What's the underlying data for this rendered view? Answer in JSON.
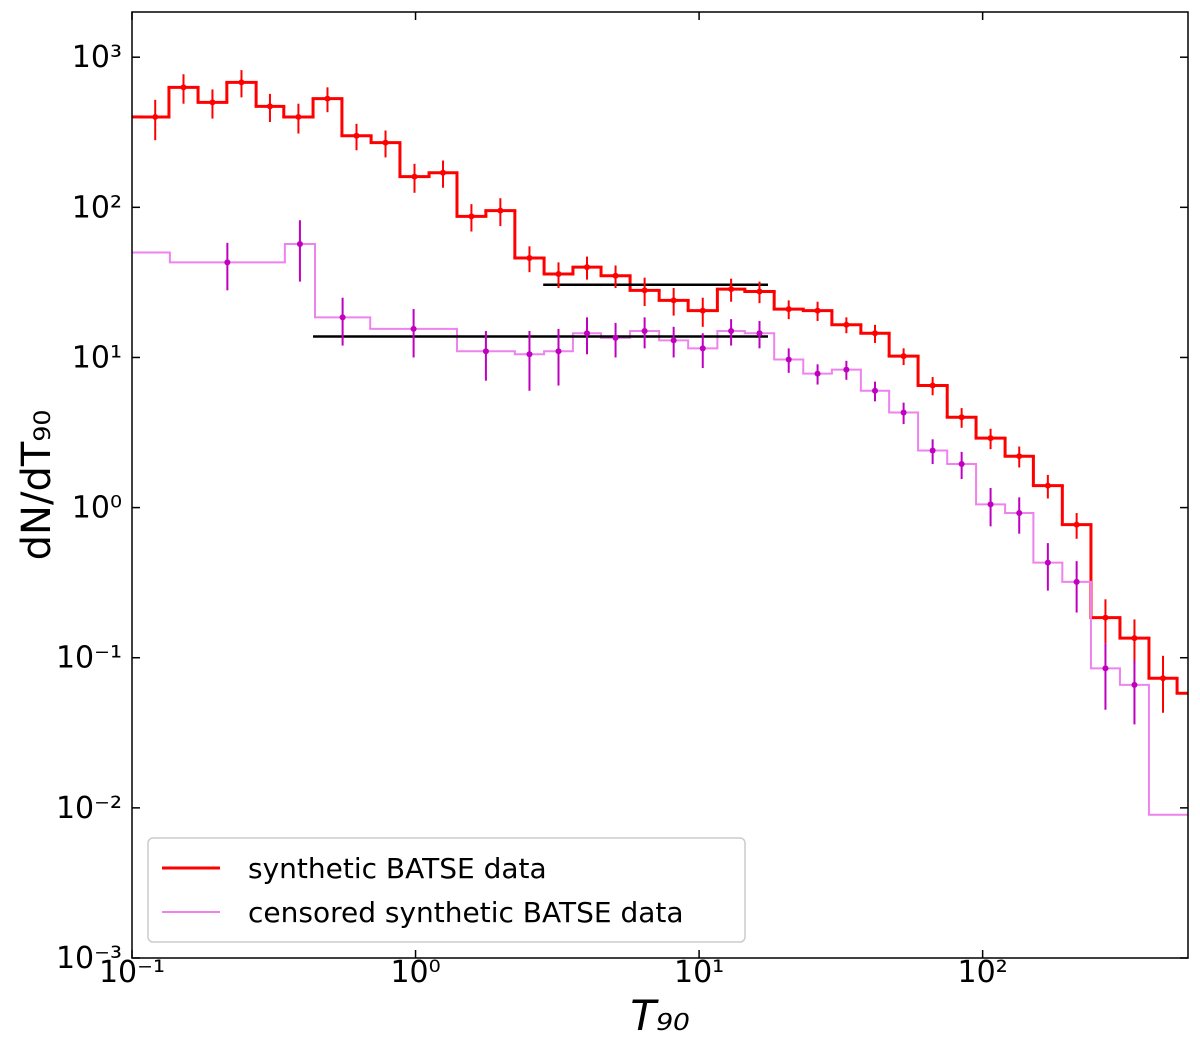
{
  "chart_data": {
    "type": "step-histogram",
    "xlabel": "T₉₀",
    "ylabel": "dN/dT₉₀",
    "log_x": true,
    "log_y": true,
    "xlim": [
      0.1,
      530
    ],
    "ylim": [
      0.001,
      2000
    ],
    "xticks": [
      {
        "value": 0.1,
        "label": "10⁻¹"
      },
      {
        "value": 1,
        "label": "10⁰"
      },
      {
        "value": 10,
        "label": "10¹"
      },
      {
        "value": 100,
        "label": "10²"
      }
    ],
    "yticks": [
      {
        "value": 0.001,
        "label": "10⁻³"
      },
      {
        "value": 0.01,
        "label": "10⁻²"
      },
      {
        "value": 0.1,
        "label": "10⁻¹"
      },
      {
        "value": 1,
        "label": "10⁰"
      },
      {
        "value": 10,
        "label": "10¹"
      },
      {
        "value": 100,
        "label": "10²"
      },
      {
        "value": 1000,
        "label": "10³"
      }
    ],
    "legend": "lower left",
    "series": [
      {
        "name": "synthetic BATSE data",
        "color": "#ff0000",
        "marker_color": "#ff0000",
        "line_width": 3,
        "bins": [
          0.1,
          0.108,
          0.135,
          0.171,
          0.216,
          0.274,
          0.343,
          0.435,
          0.55,
          0.697,
          0.881,
          1.116,
          1.4,
          1.77,
          2.24,
          2.84,
          3.59,
          4.51,
          5.71,
          7.23,
          9.15,
          11.6,
          14.5,
          18.4,
          23.3,
          29.4,
          37.2,
          46.8,
          59.2,
          75.0,
          94.8,
          120,
          151,
          191,
          241,
          305,
          386,
          485,
          530
        ],
        "values": [
          400,
          400,
          630,
          500,
          680,
          470,
          400,
          530,
          300,
          270,
          160,
          170,
          87,
          95,
          46,
          36,
          40,
          35,
          28,
          24,
          20.5,
          28.5,
          27.5,
          21,
          20.5,
          16.5,
          14.5,
          10.2,
          6.5,
          4.0,
          2.9,
          2.2,
          1.4,
          0.77,
          0.185,
          0.135,
          0.073,
          0.058
        ],
        "errors": [
          null,
          120,
          140,
          110,
          140,
          100,
          90,
          100,
          60,
          55,
          35,
          35,
          18,
          20,
          9,
          7,
          7,
          6,
          6,
          5,
          4.5,
          5,
          4.5,
          3,
          3,
          2,
          2,
          1.3,
          0.9,
          0.6,
          0.45,
          0.35,
          0.25,
          0.15,
          0.06,
          0.045,
          0.03,
          null
        ]
      },
      {
        "name": "censored synthetic BATSE data",
        "color": "#ee82ee",
        "marker_color": "#bf00bf",
        "line_width": 2,
        "bins": [
          0.1,
          0.136,
          0.346,
          0.442,
          0.692,
          1.4,
          2.24,
          2.84,
          3.59,
          4.51,
          5.71,
          7.23,
          9.15,
          11.6,
          14.5,
          18.4,
          23.3,
          29.4,
          37.2,
          46.8,
          59.2,
          75.0,
          94.8,
          120,
          151,
          191,
          241,
          305,
          386,
          530
        ],
        "values": [
          50,
          43,
          57,
          18.5,
          15.5,
          11,
          10.5,
          11,
          14.5,
          13.5,
          15,
          13,
          11.5,
          15,
          14.5,
          9.7,
          7.8,
          8.3,
          6.0,
          4.3,
          2.4,
          1.95,
          1.05,
          0.92,
          0.43,
          0.32,
          0.085,
          0.066,
          0.009
        ],
        "errors": [
          null,
          15,
          25,
          6.5,
          5.5,
          4,
          4.5,
          4.5,
          4,
          3.5,
          3.5,
          3,
          3,
          3,
          3,
          1.8,
          1.2,
          1.2,
          0.9,
          0.7,
          0.45,
          0.4,
          0.3,
          0.25,
          0.15,
          0.12,
          0.04,
          0.03,
          null
        ]
      }
    ],
    "hlines": [
      {
        "y": 30.5,
        "xmin": 2.82,
        "xmax": 17.5,
        "color": "#000000"
      },
      {
        "y": 13.8,
        "xmin": 0.435,
        "xmax": 17.5,
        "color": "#000000"
      }
    ]
  }
}
